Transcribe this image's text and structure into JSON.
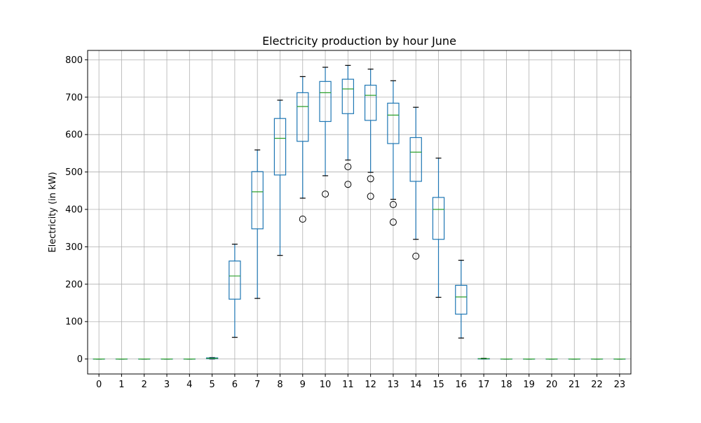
{
  "chart_data": {
    "type": "boxplot",
    "title": "Electricity production by hour June",
    "xlabel": "",
    "ylabel": "Electricity (in kW)",
    "ylim": [
      -40,
      825
    ],
    "yticks": [
      0,
      100,
      200,
      300,
      400,
      500,
      600,
      700,
      800
    ],
    "grid": true,
    "categories": [
      "0",
      "1",
      "2",
      "3",
      "4",
      "5",
      "6",
      "7",
      "8",
      "9",
      "10",
      "11",
      "12",
      "13",
      "14",
      "15",
      "16",
      "17",
      "18",
      "19",
      "20",
      "21",
      "22",
      "23"
    ],
    "boxes": [
      {
        "min": 0,
        "q1": 0,
        "median": 0,
        "q3": 0,
        "max": 0,
        "fliers": []
      },
      {
        "min": 0,
        "q1": 0,
        "median": 0,
        "q3": 0,
        "max": 0,
        "fliers": []
      },
      {
        "min": 0,
        "q1": 0,
        "median": 0,
        "q3": 0,
        "max": 0,
        "fliers": []
      },
      {
        "min": 0,
        "q1": 0,
        "median": 0,
        "q3": 0,
        "max": 0,
        "fliers": []
      },
      {
        "min": 0,
        "q1": 0,
        "median": 0,
        "q3": 0,
        "max": 0,
        "fliers": []
      },
      {
        "min": 0,
        "q1": 1,
        "median": 2,
        "q3": 3,
        "max": 4,
        "fliers": []
      },
      {
        "min": 58,
        "q1": 160,
        "median": 222,
        "q3": 262,
        "max": 307,
        "fliers": []
      },
      {
        "min": 162,
        "q1": 348,
        "median": 447,
        "q3": 501,
        "max": 559,
        "fliers": []
      },
      {
        "min": 277,
        "q1": 492,
        "median": 590,
        "q3": 643,
        "max": 692,
        "fliers": []
      },
      {
        "min": 430,
        "q1": 582,
        "median": 675,
        "q3": 712,
        "max": 755,
        "fliers": [
          374
        ]
      },
      {
        "min": 490,
        "q1": 635,
        "median": 712,
        "q3": 742,
        "max": 780,
        "fliers": [
          441
        ]
      },
      {
        "min": 532,
        "q1": 656,
        "median": 722,
        "q3": 748,
        "max": 785,
        "fliers": [
          514,
          467
        ]
      },
      {
        "min": 499,
        "q1": 638,
        "median": 705,
        "q3": 732,
        "max": 775,
        "fliers": [
          482,
          435
        ]
      },
      {
        "min": 427,
        "q1": 576,
        "median": 652,
        "q3": 684,
        "max": 744,
        "fliers": [
          413,
          366
        ]
      },
      {
        "min": 320,
        "q1": 475,
        "median": 553,
        "q3": 592,
        "max": 673,
        "fliers": [
          275
        ]
      },
      {
        "min": 165,
        "q1": 320,
        "median": 400,
        "q3": 432,
        "max": 537,
        "fliers": []
      },
      {
        "min": 56,
        "q1": 120,
        "median": 166,
        "q3": 197,
        "max": 264,
        "fliers": []
      },
      {
        "min": 0,
        "q1": 0,
        "median": 1,
        "q3": 1,
        "max": 2,
        "fliers": []
      },
      {
        "min": 0,
        "q1": 0,
        "median": 0,
        "q3": 0,
        "max": 0,
        "fliers": []
      },
      {
        "min": 0,
        "q1": 0,
        "median": 0,
        "q3": 0,
        "max": 0,
        "fliers": []
      },
      {
        "min": 0,
        "q1": 0,
        "median": 0,
        "q3": 0,
        "max": 0,
        "fliers": []
      },
      {
        "min": 0,
        "q1": 0,
        "median": 0,
        "q3": 0,
        "max": 0,
        "fliers": []
      },
      {
        "min": 0,
        "q1": 0,
        "median": 0,
        "q3": 0,
        "max": 0,
        "fliers": []
      },
      {
        "min": 0,
        "q1": 0,
        "median": 0,
        "q3": 0,
        "max": 0,
        "fliers": []
      }
    ],
    "colors": {
      "box": "#1f77b4",
      "median": "#2ca02c",
      "cap": "#000000",
      "grid": "#b0b0b0"
    }
  }
}
